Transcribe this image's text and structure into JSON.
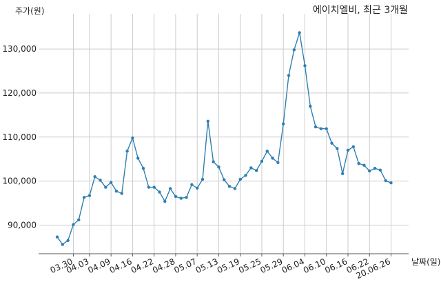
{
  "chart_data": {
    "type": "line",
    "title": "에이치엘비, 최근 3개월",
    "ylabel": "주가(원)",
    "xlabel": "날짜(일)",
    "ylim": [
      83500,
      138000
    ],
    "grid": true,
    "line_color": "#2e7fb1",
    "y_ticks": [
      90000,
      100000,
      110000,
      120000,
      130000
    ],
    "y_tick_labels": [
      "90,000",
      "100,000",
      "110,000",
      "120,000",
      "130,000"
    ],
    "x_tick_labels": [
      "03.30",
      "04.03",
      "04.09",
      "04.16",
      "04.22",
      "04.28",
      "05.07",
      "05.13",
      "05.19",
      "05.25",
      "05.29",
      "06.04",
      "06.10",
      "06.16",
      "06.22",
      "20.06.26"
    ],
    "x_tick_index": [
      3,
      6,
      10,
      14,
      18,
      22,
      26,
      30,
      34,
      38,
      42,
      46,
      50,
      54,
      58,
      62
    ],
    "values": [
      87300,
      85600,
      86500,
      90100,
      91200,
      96300,
      96700,
      101000,
      100200,
      98600,
      99700,
      97700,
      97200,
      106800,
      109800,
      105200,
      102900,
      98600,
      98600,
      97500,
      95400,
      98300,
      96500,
      96100,
      96300,
      99200,
      98400,
      100400,
      113600,
      104400,
      103200,
      100300,
      98800,
      98300,
      100400,
      101300,
      103000,
      102400,
      104500,
      106800,
      105200,
      104200,
      113000,
      124000,
      129800,
      133700,
      126200,
      117000,
      112300,
      111900,
      111900,
      108600,
      107400,
      101700,
      107000,
      107800,
      104000,
      103600,
      102300,
      102900,
      102500,
      100100,
      99600
    ]
  }
}
